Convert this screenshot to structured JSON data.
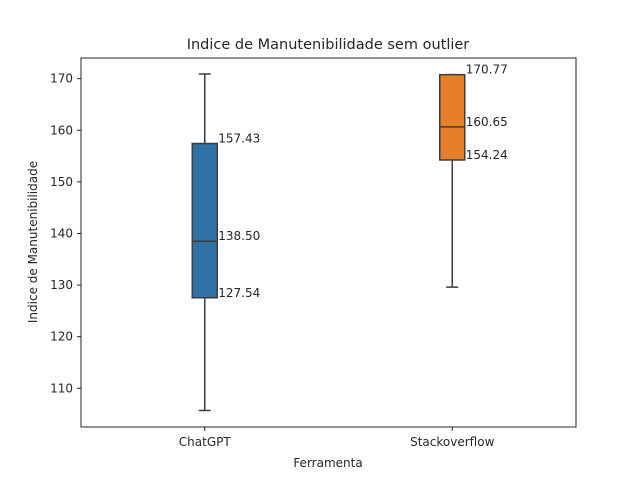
{
  "chart_data": {
    "type": "box",
    "title": "Indice de Manutenibilidade sem outlier",
    "xlabel": "Ferramenta",
    "ylabel": "Indice de Manutenibilidade",
    "ylim": [
      102.5,
      174
    ],
    "yticks": [
      110,
      120,
      130,
      140,
      150,
      160,
      170
    ],
    "grid": false,
    "categories": [
      "ChatGPT",
      "Stackoverflow"
    ],
    "boxes": [
      {
        "category": "ChatGPT",
        "whisker_low": 105.7,
        "q1": 127.54,
        "median": 138.5,
        "q3": 157.43,
        "whisker_high": 170.9,
        "labels": [
          "157.43",
          "138.50",
          "127.54"
        ],
        "color": "#2f72a5"
      },
      {
        "category": "Stackoverflow",
        "whisker_low": 129.6,
        "q1": 154.24,
        "median": 160.65,
        "q3": 170.77,
        "whisker_high": 170.77,
        "labels": [
          "170.77",
          "160.65",
          "154.24"
        ],
        "color": "#e5802a"
      }
    ]
  }
}
